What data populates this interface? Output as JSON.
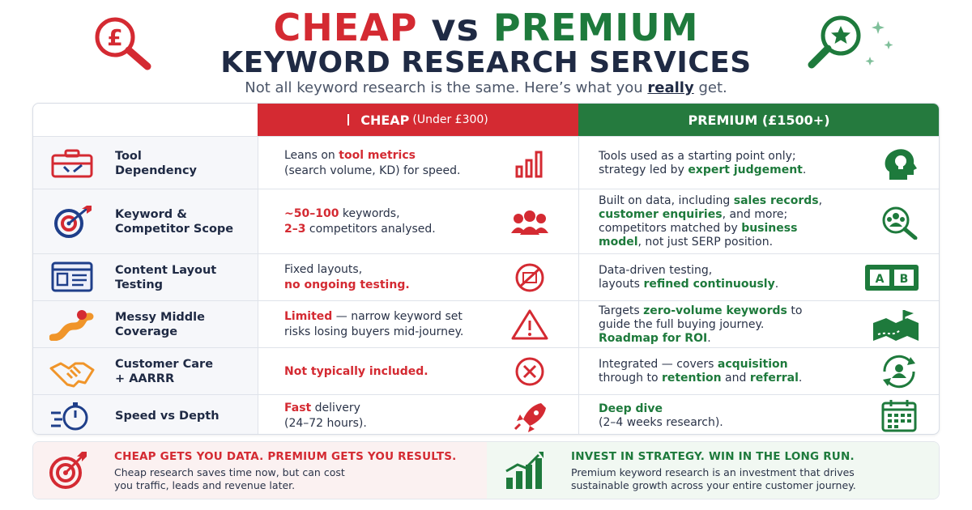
{
  "header": {
    "title_cheap": "CHEAP",
    "title_vs": "vs",
    "title_premium": "PREMIUM",
    "title_line2": "KEYWORD RESEARCH SERVICES",
    "subtitle_pre": "Not all keyword research is the same. Here’s what you ",
    "subtitle_bold": "really",
    "subtitle_post": " get."
  },
  "columns": {
    "cheap": "CHEAP",
    "cheap_note": "(Under £300)",
    "premium": "PREMIUM (£1500+)"
  },
  "rows": [
    {
      "feature": "Tool\nDependency",
      "cheap": [
        "Leans on ",
        {
          "r": "tool metrics"
        },
        "\n(search volume, KD) for speed."
      ],
      "premium": [
        "Tools used as a starting point only;\nstrategy led by ",
        {
          "g": "expert judgement"
        },
        "."
      ]
    },
    {
      "feature": "Keyword &\nCompetitor Scope",
      "cheap": [
        {
          "r": "~50–100"
        },
        " keywords,\n",
        {
          "r": "2–3"
        },
        " competitors analysed."
      ],
      "premium": [
        "Built on data, including ",
        {
          "g": "sales records"
        },
        ",\n",
        {
          "g": "customer enquiries"
        },
        ", and more;\ncompetitors matched by ",
        {
          "g": "business\nmodel"
        },
        ", not just SERP position."
      ]
    },
    {
      "feature": "Content Layout\nTesting",
      "cheap": [
        "Fixed layouts,\n",
        {
          "r": "no ongoing testing."
        }
      ],
      "premium": [
        "Data-driven testing,\nlayouts ",
        {
          "g": "refined continuously"
        },
        "."
      ]
    },
    {
      "feature": "Messy Middle\nCoverage",
      "cheap": [
        {
          "r": "Limited"
        },
        " — narrow keyword set\nrisks losing buyers mid-journey."
      ],
      "premium": [
        "Targets ",
        {
          "g": "zero-volume keywords"
        },
        " to\nguide the full buying journey.\n",
        {
          "g": "Roadmap for ROI"
        },
        "."
      ]
    },
    {
      "feature": "Customer Care\n+ AARRR",
      "cheap": [
        {
          "r": "Not typically included."
        }
      ],
      "premium": [
        "Integrated — covers ",
        {
          "g": "acquisition"
        },
        "\nthrough to ",
        {
          "g": "retention"
        },
        " and ",
        {
          "g": "referral"
        },
        "."
      ]
    },
    {
      "feature": "Speed vs Depth",
      "cheap": [
        {
          "r": "Fast"
        },
        " delivery\n(24–72 hours)."
      ],
      "premium": [
        {
          "g": "Deep dive"
        },
        "\n(2–4 weeks research)."
      ]
    }
  ],
  "icons": {
    "cheap": [
      "bar-chart-icon",
      "group-icon",
      "no-test-icon",
      "warning-icon",
      "x-circle-icon",
      "rocket-icon"
    ],
    "premium": [
      "brain-head-icon",
      "search-people-icon",
      "ab-test-icon",
      "journey-map-icon",
      "cycle-user-icon",
      "calendar-icon"
    ],
    "feature": [
      "toolbox-icon",
      "target-icon",
      "layout-icon",
      "winding-road-icon",
      "handshake-icon",
      "stopwatch-icon"
    ]
  },
  "ab_labels": {
    "a": "A",
    "b": "B"
  },
  "footer": {
    "left_title": "CHEAP GETS YOU DATA. PREMIUM GETS YOU RESULTS.",
    "left_text": "Cheap research saves time now, but can cost\nyou traffic, leads and revenue later.",
    "right_title": "INVEST IN STRATEGY. WIN IN THE LONG RUN.",
    "right_text": "Premium keyword research is an investment that drives\nsustainable growth across your entire customer journey."
  },
  "colors": {
    "red": "#d42a32",
    "green": "#1e7a3c",
    "navy": "#1f2a44"
  }
}
